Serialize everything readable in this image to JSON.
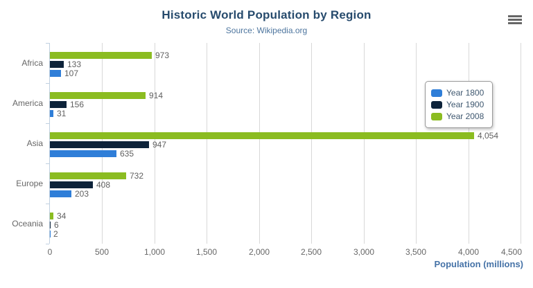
{
  "header": {
    "title": "Historic World Population by Region",
    "subtitle": "Source: Wikipedia.org"
  },
  "export_menu": {
    "icon": "hamburger-menu-icon"
  },
  "palette": {
    "title_color": "#274b6d",
    "subtitle_color": "#4d759e",
    "axis_title_color": "#4572a7",
    "axis_label_color": "#666666",
    "data_label_color": "#606060",
    "legend_text_color": "#3e576f",
    "gridline_color": "#d8d8d8",
    "axis_line_color": "#c0d0e0",
    "menu_icon_color": "#666666"
  },
  "chart_data": {
    "type": "bar",
    "title": "Historic World Population by Region",
    "subtitle": "Source: Wikipedia.org",
    "categories": [
      "Africa",
      "America",
      "Asia",
      "Europe",
      "Oceania"
    ],
    "series": [
      {
        "name": "Year 1800",
        "color": "#2f7ed8",
        "values": [
          107,
          31,
          635,
          203,
          2
        ],
        "labels": [
          "107",
          "31",
          "635",
          "203",
          "2"
        ]
      },
      {
        "name": "Year 1900",
        "color": "#0d233a",
        "values": [
          133,
          156,
          947,
          408,
          6
        ],
        "labels": [
          "133",
          "156",
          "947",
          "408",
          "6"
        ]
      },
      {
        "name": "Year 2008",
        "color": "#8bbc21",
        "values": [
          973,
          914,
          4054,
          732,
          34
        ],
        "labels": [
          "973",
          "914",
          "4,054",
          "732",
          "34"
        ]
      }
    ],
    "bar_order_top_to_bottom": [
      "Year 2008",
      "Year 1900",
      "Year 1800"
    ],
    "xlabel": "Population (millions)",
    "xlim": [
      0,
      4500
    ],
    "x_ticks": [
      0,
      500,
      1000,
      1500,
      2000,
      2500,
      3000,
      3500,
      4000,
      4500
    ],
    "x_tick_labels": [
      "0",
      "500",
      "1,000",
      "1,500",
      "2,000",
      "2,500",
      "3,000",
      "3,500",
      "4,000",
      "4,500"
    ],
    "grid": true,
    "legend_position": "right-overlay",
    "legend_entries": [
      "Year 1800",
      "Year 1900",
      "Year 2008"
    ]
  }
}
